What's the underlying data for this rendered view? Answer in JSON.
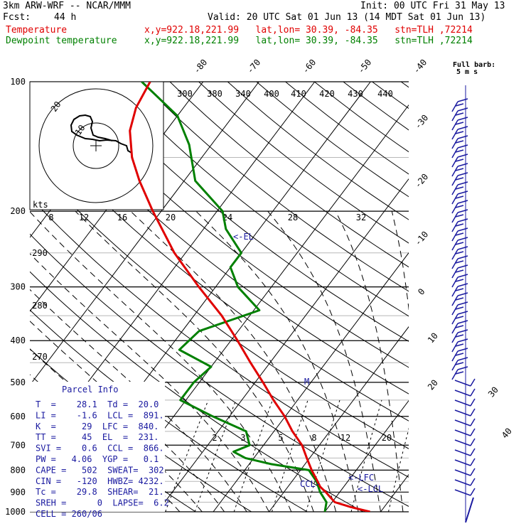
{
  "header": {
    "model": "3km ARW-WRF -- NCAR/MMM",
    "init": "Init: 00 UTC Fri 31 May 13",
    "fcst_label": "Fcst:",
    "fcst_value": "44 h",
    "valid": "Valid: 20 UTC Sat 01 Jun 13 (14 MDT Sat 01 Jun 13)",
    "temp_legend": "Temperature",
    "dew_legend": "Dewpoint temperature",
    "temp_info": "x,y=922.18,221.99   lat,lon= 30.39, -84.35   stn=TLH ,72214",
    "dew_info": "x,y=922.18,221.99   lat,lon= 30.39, -84.35   stn=TLH ,72214"
  },
  "colors": {
    "temperature": "#e00000",
    "dewpoint": "#008000",
    "parcel_text": "#1a1aa0",
    "wind_barbs": "#1a1aa0"
  },
  "wind_key": {
    "line1": "Full barb:",
    "line2": "5 m s"
  },
  "hodograph": {
    "ring_labels": [
      "10",
      "20"
    ],
    "units": "kts"
  },
  "chart_data": {
    "type": "skew-t",
    "pressure_levels": [
      "100",
      "200",
      "300",
      "400",
      "500",
      "600",
      "700",
      "800",
      "900",
      "1000"
    ],
    "isotherm_labels": [
      "-80",
      "-70",
      "-60",
      "-50",
      "-40",
      "-30",
      "-20",
      "-10",
      "0",
      "10",
      "20",
      "30",
      "40"
    ],
    "theta_labels": [
      "300",
      "380",
      "340",
      "400",
      "410",
      "420",
      "430",
      "440"
    ],
    "theta_left_labels": [
      "290",
      "280",
      "270"
    ],
    "mixing_ratio_labels": [
      "8",
      "12",
      "16",
      "20",
      "24",
      "28",
      "32"
    ],
    "mixing_ratio_low_labels": [
      "2",
      "3",
      "5",
      "8",
      "12",
      "20"
    ],
    "level_markers": {
      "el": "<-EL",
      "m": "M",
      "lfc": "<-LFC",
      "lcl": "<-LCL",
      "ccl": "CCL-"
    },
    "temperature": [
      {
        "p": 1000,
        "t": 28.1
      },
      {
        "p": 975,
        "t": 24.0
      },
      {
        "p": 950,
        "t": 20.5
      },
      {
        "p": 925,
        "t": 19.0
      },
      {
        "p": 900,
        "t": 17.5
      },
      {
        "p": 875,
        "t": 15.8
      },
      {
        "p": 850,
        "t": 14.6
      },
      {
        "p": 800,
        "t": 12.0
      },
      {
        "p": 750,
        "t": 9.5
      },
      {
        "p": 700,
        "t": 6.9
      },
      {
        "p": 650,
        "t": 3.3
      },
      {
        "p": 600,
        "t": -0.1
      },
      {
        "p": 550,
        "t": -4.3
      },
      {
        "p": 500,
        "t": -8.6
      },
      {
        "p": 450,
        "t": -13.5
      },
      {
        "p": 400,
        "t": -18.8
      },
      {
        "p": 350,
        "t": -25.0
      },
      {
        "p": 300,
        "t": -33.0
      },
      {
        "p": 250,
        "t": -42.0
      },
      {
        "p": 200,
        "t": -51.5
      },
      {
        "p": 170,
        "t": -58.0
      },
      {
        "p": 150,
        "t": -62.5
      },
      {
        "p": 130,
        "t": -66.5
      },
      {
        "p": 115,
        "t": -68.5
      },
      {
        "p": 100,
        "t": -69.5
      }
    ],
    "dewpoint": [
      {
        "p": 1000,
        "t": 20.0
      },
      {
        "p": 950,
        "t": 19.0
      },
      {
        "p": 900,
        "t": 16.5
      },
      {
        "p": 850,
        "t": 14.4
      },
      {
        "p": 800,
        "t": 11.5
      },
      {
        "p": 775,
        "t": 4.0
      },
      {
        "p": 750,
        "t": -1.5
      },
      {
        "p": 725,
        "t": -4.5
      },
      {
        "p": 700,
        "t": -2.5
      },
      {
        "p": 650,
        "t": -5.0
      },
      {
        "p": 600,
        "t": -13.0
      },
      {
        "p": 550,
        "t": -21.0
      },
      {
        "p": 500,
        "t": -21.0
      },
      {
        "p": 460,
        "t": -20.0
      },
      {
        "p": 420,
        "t": -28.0
      },
      {
        "p": 380,
        "t": -27.0
      },
      {
        "p": 340,
        "t": -19.0
      },
      {
        "p": 300,
        "t": -26.0
      },
      {
        "p": 270,
        "t": -30.0
      },
      {
        "p": 250,
        "t": -30.0
      },
      {
        "p": 220,
        "t": -36.0
      },
      {
        "p": 200,
        "t": -39.0
      },
      {
        "p": 170,
        "t": -48.0
      },
      {
        "p": 140,
        "t": -54.0
      },
      {
        "p": 120,
        "t": -60.0
      },
      {
        "p": 100,
        "t": -71.0
      }
    ]
  },
  "parcel_info": {
    "title": "Parcel Info",
    "rows": [
      "T  =    28.1  Td =  20.0",
      "LI =    -1.6  LCL =  891.",
      "K  =     29  LFC =  840.",
      "TT =     45  EL  =  231.",
      "SVI =    0.6  CCL =  866.",
      "PW =   4.06  YGP =   0.1",
      "CAPE =   502  SWEAT=  302",
      "CIN =   -120  HWBZ= 4232.",
      "Tc =    29.8  SHEAR=  21.",
      "SREH =      0  LAPSE=  6.2",
      "CELL = 260/06"
    ]
  }
}
